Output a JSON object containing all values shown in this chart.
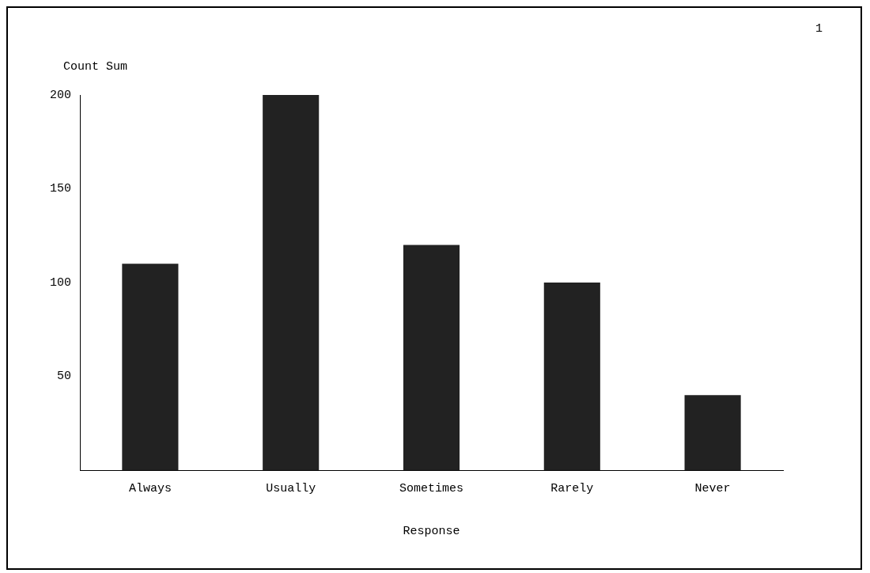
{
  "chart_data": {
    "type": "bar",
    "categories": [
      "Always",
      "Usually",
      "Sometimes",
      "Rarely",
      "Never"
    ],
    "values": [
      110,
      200,
      120,
      100,
      40
    ],
    "color": "#222222",
    "xlabel": "Response",
    "ylabel": "Count Sum",
    "ylim": [
      0,
      200
    ],
    "yticks": [
      50,
      100,
      150,
      200
    ],
    "annotations": [
      "1"
    ],
    "grid": false,
    "legend": false
  }
}
